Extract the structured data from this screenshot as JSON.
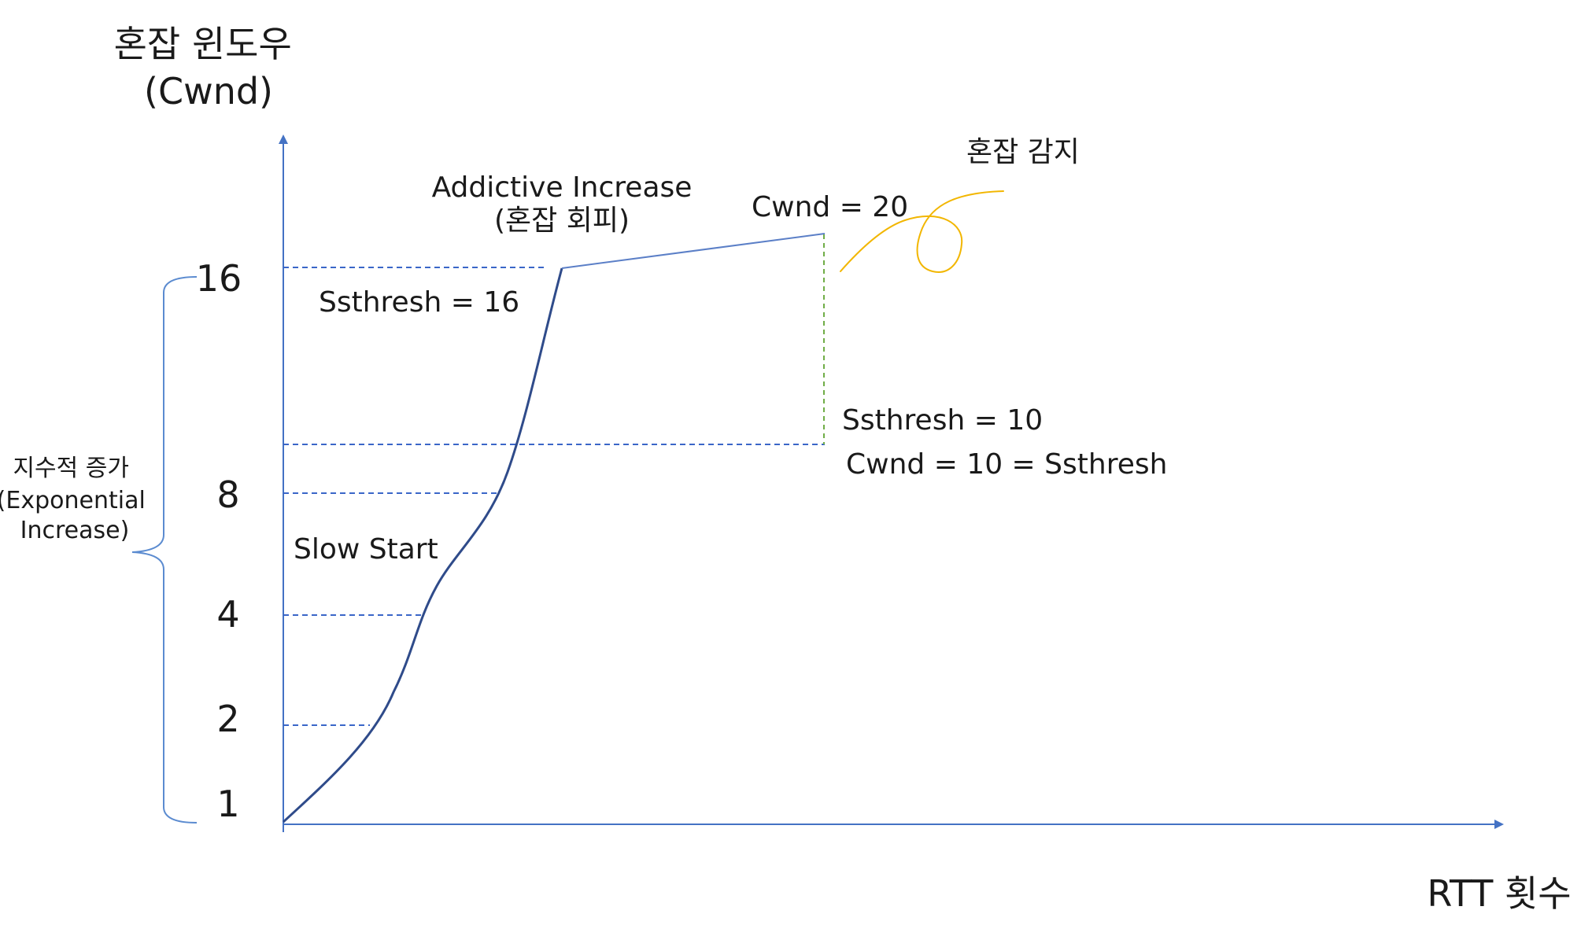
{
  "y_axis_title": [
    "혼잡 윈도우",
    "(Cwnd)"
  ],
  "x_axis_title": "RTT 횟수",
  "y_ticks": [
    "16",
    "8",
    "4",
    "2",
    "1"
  ],
  "brace_label": [
    "지수적 증가",
    "(Exponential",
    "Increase)"
  ],
  "annotations": {
    "ai_title": "Addictive Increase",
    "ai_sub": "(혼잡 회피)",
    "cwnd_peak": "Cwnd = 20",
    "congestion_detect": "혼잡 감지",
    "ssthresh_initial": "Ssthresh = 16",
    "ssthresh_new": "Ssthresh = 10",
    "cwnd_reset": "Cwnd = 10 = Ssthresh",
    "slow_start": "Slow Start"
  },
  "colors": {
    "axis": "#4472c4",
    "curve": "#2f4b8a",
    "guide": "#3a66c8",
    "drop": "#70ad47",
    "sketch": "#f2b600",
    "brace": "#5b8bd0",
    "text": "#1a1a1a"
  }
}
